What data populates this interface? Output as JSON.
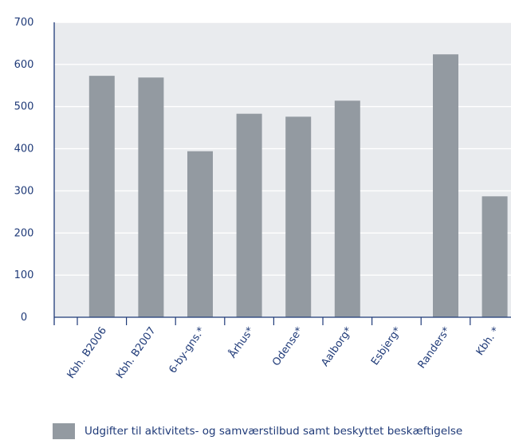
{
  "chart_data": {
    "type": "bar",
    "categories": [
      "Kbh. B2006",
      "Kbh. B2007",
      "6-by-gns.*",
      "Århus*",
      "Odense*",
      "Aalborg*",
      "Esbjerg*",
      "Randers*",
      "Kbh. *"
    ],
    "series": [
      {
        "name": "Udgifter til aktivitets- og samværstilbud samt beskyttet beskæftigelse",
        "values": [
          573,
          569,
          394,
          483,
          476,
          514,
          null,
          624,
          287
        ]
      }
    ],
    "ylim": [
      0,
      700
    ],
    "yticks": [
      0,
      100,
      200,
      300,
      400,
      500,
      600,
      700
    ],
    "grid": true,
    "legend_position": "bottom",
    "colors": {
      "bar": "#939aa1",
      "plot_bg": "#e9ebee",
      "axis": "#1f3a78",
      "text": "#1f3a78"
    }
  }
}
